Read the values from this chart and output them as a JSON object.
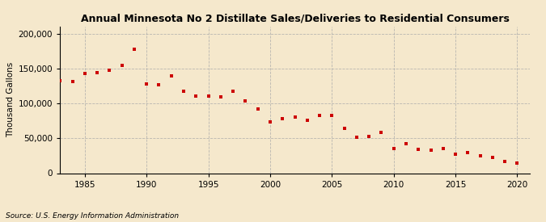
{
  "title": "Annual Minnesota No 2 Distillate Sales/Deliveries to Residential Consumers",
  "ylabel": "Thousand Gallons",
  "source": "Source: U.S. Energy Information Administration",
  "background_color": "#f5e8cc",
  "plot_bg_color": "#f5e8cc",
  "marker_color": "#cc0000",
  "marker": "s",
  "marker_size": 3.5,
  "xlim": [
    1983,
    2021
  ],
  "ylim": [
    0,
    210000
  ],
  "yticks": [
    0,
    50000,
    100000,
    150000,
    200000
  ],
  "xticks": [
    1985,
    1990,
    1995,
    2000,
    2005,
    2010,
    2015,
    2020
  ],
  "years": [
    1983,
    1984,
    1985,
    1986,
    1987,
    1988,
    1989,
    1990,
    1991,
    1992,
    1993,
    1994,
    1995,
    1996,
    1997,
    1998,
    1999,
    2000,
    2001,
    2002,
    2003,
    2004,
    2005,
    2006,
    2007,
    2008,
    2009,
    2010,
    2011,
    2012,
    2013,
    2014,
    2015,
    2016,
    2017,
    2018,
    2019,
    2020
  ],
  "values": [
    132000,
    131000,
    143000,
    144000,
    147000,
    155000,
    178000,
    128000,
    127000,
    140000,
    118000,
    111000,
    110000,
    109000,
    117000,
    103000,
    92000,
    74000,
    78000,
    80000,
    76000,
    83000,
    83000,
    64000,
    51000,
    53000,
    58000,
    35000,
    42000,
    34000,
    33000,
    35000,
    27000,
    30000,
    25000,
    22000,
    17000,
    15000
  ],
  "title_fontsize": 9,
  "ylabel_fontsize": 7.5,
  "tick_fontsize": 7.5,
  "source_fontsize": 6.5,
  "grid_color": "#aaaaaa",
  "spine_color": "#000000"
}
